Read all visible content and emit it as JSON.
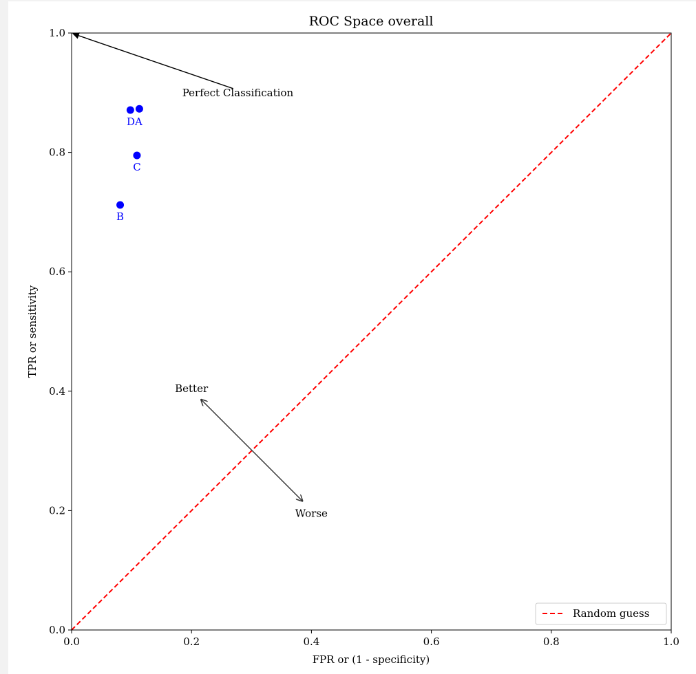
{
  "chart_data": {
    "type": "scatter",
    "title": "ROC Space overall",
    "xlabel": "FPR or (1 - specificity)",
    "ylabel": "TPR or sensitivity",
    "xlim": [
      0,
      1
    ],
    "ylim": [
      0,
      1
    ],
    "xticks": [
      "0.0",
      "0.2",
      "0.4",
      "0.6",
      "0.8",
      "1.0"
    ],
    "yticks": [
      "0.0",
      "0.2",
      "0.4",
      "0.6",
      "0.8",
      "1.0"
    ],
    "grid": false,
    "point_color": "#0000ff",
    "points": [
      {
        "label": "D",
        "x": 0.098,
        "y": 0.871
      },
      {
        "label": "A",
        "x": 0.113,
        "y": 0.873
      },
      {
        "label": "C",
        "x": 0.109,
        "y": 0.795
      },
      {
        "label": "B",
        "x": 0.081,
        "y": 0.712
      }
    ],
    "point_labels": [
      {
        "text": "DA",
        "x": 0.105
      },
      {
        "text": "C",
        "x": 0.109
      },
      {
        "text": "B",
        "x": 0.081
      }
    ],
    "random_guess": {
      "name": "Random guess",
      "color": "#ff0000",
      "x": [
        0,
        1
      ],
      "y": [
        0,
        1
      ]
    },
    "annotations": [
      {
        "text": "Perfect Classification",
        "x": 0.0,
        "y": 1.0,
        "text_x": 0.18,
        "text_y": 0.9
      },
      {
        "text": "Better",
        "x": 0.216,
        "y": 0.386
      },
      {
        "text": "Worse",
        "x": 0.385,
        "y": 0.216
      }
    ],
    "legend": {
      "placement": "lower-right",
      "entries": [
        "Random guess"
      ]
    }
  }
}
